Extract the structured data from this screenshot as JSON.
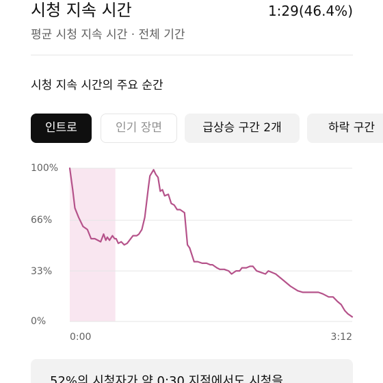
{
  "header": {
    "title": "시청 지속 시간",
    "value": "1:29(46.4%)",
    "subtitle": "평균 시청 지속 시간 · 전체 기간"
  },
  "section": {
    "title": "시청 지속 시간의 주요 순간"
  },
  "chips": [
    {
      "label": "인트로",
      "state": "active"
    },
    {
      "label": "인기 장면",
      "state": "disabled"
    },
    {
      "label": "급상승 구간 2개",
      "state": "normal"
    },
    {
      "label": "하락 구간",
      "state": "normal"
    }
  ],
  "chart_data": {
    "type": "line",
    "y_tick_labels": [
      "100%",
      "66%",
      "33%",
      "0%"
    ],
    "x_tick_labels": [
      "0:00",
      "3:12"
    ],
    "ylim": [
      0,
      100
    ],
    "xlim_seconds": [
      0,
      192
    ],
    "highlight_range_seconds": [
      0,
      31
    ],
    "line_color": "#b5528a",
    "highlight_color": "#f9e6f0",
    "series": [
      {
        "x_seconds": [
          0,
          2,
          3.5,
          6,
          9,
          12,
          14.5,
          17,
          21,
          23,
          24.5,
          25.5,
          27,
          29,
          30.5,
          31.5,
          33,
          35,
          37,
          39,
          43,
          45.5,
          47,
          49,
          51,
          53.5,
          54.5,
          57,
          58.5,
          60,
          61.5,
          63,
          64.5,
          67,
          69,
          71,
          73,
          75,
          78,
          80,
          81.5,
          84.5,
          87,
          90,
          93,
          95.5,
          97,
          100,
          102,
          105,
          108,
          110,
          113,
          115.5,
          117,
          120,
          122.5,
          124.5,
          127,
          130,
          133,
          135,
          140,
          145,
          150,
          155,
          158.5,
          160,
          162.5,
          165,
          169,
          172,
          176,
          179,
          182,
          184.5,
          187,
          189,
          192
        ],
        "y_percent": [
          100,
          86,
          74,
          68,
          62,
          60,
          54,
          54,
          52,
          57,
          53,
          55,
          53,
          56,
          54,
          54,
          51,
          52,
          50,
          51,
          56,
          56,
          57,
          60,
          68,
          88,
          95,
          99,
          96,
          94,
          85,
          86,
          82,
          83,
          77,
          76,
          73,
          73,
          71,
          50,
          48,
          39,
          39,
          38,
          38,
          37,
          37,
          35,
          34,
          34,
          33,
          31,
          33,
          33,
          35,
          35,
          36,
          36,
          33,
          32,
          31,
          33,
          31,
          27,
          23,
          20,
          19,
          19,
          19,
          19,
          19,
          18,
          16,
          16,
          13,
          11,
          7,
          5,
          3
        ]
      }
    ]
  },
  "info": {
    "text": "52%의 시청자가 약 0:30 지점에서도 시청을"
  }
}
